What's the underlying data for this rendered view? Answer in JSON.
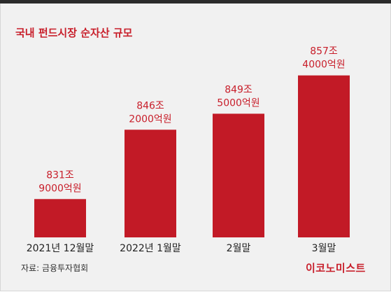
{
  "title": "국내 펀드시장 순자산 규모",
  "source": "자료: 금융투자협회",
  "brand": "이코노미스트",
  "colors": {
    "bar": "#c21a26",
    "accent": "#c81e2a",
    "background": "#f1f1f1"
  },
  "chart_data": {
    "type": "bar",
    "title": "국내 펀드시장 순자산 규모",
    "xlabel": "",
    "ylabel": "",
    "unit": "억원",
    "categories": [
      "2021년 12월말",
      "2022년 1월말",
      "2월말",
      "3월말"
    ],
    "values": [
      8319000,
      8462000,
      8495000,
      8574000
    ],
    "value_labels": [
      [
        "831조",
        "9000억원"
      ],
      [
        "846조",
        "2000억원"
      ],
      [
        "849조",
        "5000억원"
      ],
      [
        "857조",
        "4000억원"
      ]
    ],
    "grid": false,
    "legend": "none"
  }
}
